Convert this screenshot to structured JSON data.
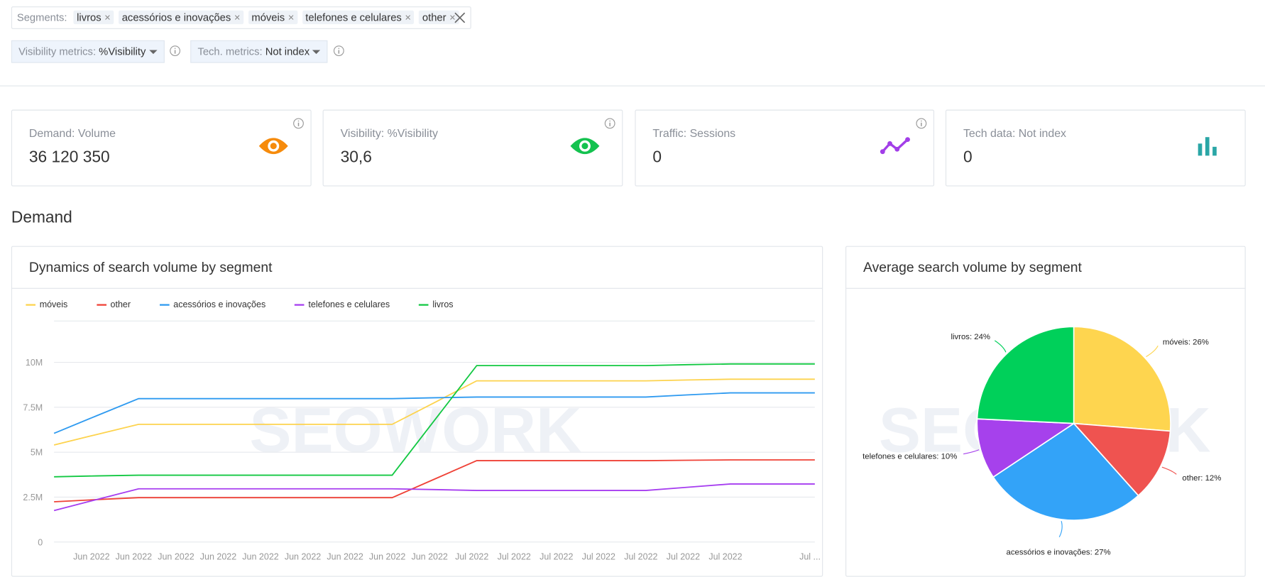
{
  "filters": {
    "segments_label": "Segments:",
    "segments": [
      "livros",
      "acessórios e inovações",
      "móveis",
      "telefones e celulares",
      "other"
    ],
    "visibility_label": "Visibility metrics:",
    "visibility_value": "%Visibility",
    "tech_label": "Tech. metrics:",
    "tech_value": "Not index"
  },
  "cards": [
    {
      "title": "Demand: Volume",
      "value": "36 120 350"
    },
    {
      "title": "Visibility: %Visibility",
      "value": "30,6"
    },
    {
      "title": "Traffic: Sessions",
      "value": "0"
    },
    {
      "title": "Tech data: Not index",
      "value": "0"
    }
  ],
  "section_title": "Demand",
  "chart_data": [
    {
      "type": "line",
      "title": "Dynamics of search volume by segment",
      "watermark": "SEOWORK",
      "categories": [
        null,
        "Jun 2022",
        "Jun 2022",
        "Jun 2022",
        "Jun 2022",
        "Jun 2022",
        "Jun 2022",
        "Jun 2022",
        "Jun 2022",
        "Jun 2022",
        "Jul 2022",
        "Jul 2022",
        "Jul 2022",
        "Jul 2022",
        "Jul 2022",
        "Jul 2022",
        "Jul 2022",
        null,
        "Jul ..."
      ],
      "ylim": [
        0,
        12300000
      ],
      "yticks": [
        0,
        {
          "value": 2500000,
          "label": "2.5M"
        },
        {
          "value": 5000000,
          "label": "5M"
        },
        {
          "value": 7500000,
          "label": "7.5M"
        },
        {
          "value": 10000000,
          "label": "10M"
        }
      ],
      "grid": true,
      "series": [
        {
          "name": "móveis",
          "color": "#fdd34e",
          "values": [
            5400000,
            5980000,
            6550000,
            6550000,
            6550000,
            6550000,
            6550000,
            6550000,
            6550000,
            7760000,
            8970000,
            8970000,
            8970000,
            8970000,
            8970000,
            9020000,
            9060000,
            9060000,
            9060000
          ]
        },
        {
          "name": "other",
          "color": "#ef4136",
          "values": [
            2240000,
            2360000,
            2470000,
            2470000,
            2470000,
            2470000,
            2470000,
            2470000,
            2470000,
            3500000,
            4530000,
            4530000,
            4530000,
            4530000,
            4530000,
            4550000,
            4570000,
            4570000,
            4570000
          ]
        },
        {
          "name": "acessórios e inovações",
          "color": "#2e9af0",
          "values": [
            6050000,
            7020000,
            7980000,
            7980000,
            7980000,
            7980000,
            7980000,
            7980000,
            7980000,
            8030000,
            8070000,
            8070000,
            8070000,
            8070000,
            8070000,
            8190000,
            8300000,
            8300000,
            8300000
          ]
        },
        {
          "name": "telefones e celulares",
          "color": "#a63df0",
          "values": [
            1750000,
            2360000,
            2960000,
            2960000,
            2960000,
            2960000,
            2960000,
            2960000,
            2960000,
            2920000,
            2870000,
            2870000,
            2870000,
            2870000,
            2870000,
            3050000,
            3230000,
            3230000,
            3230000
          ]
        },
        {
          "name": "livros",
          "color": "#12c842",
          "values": [
            3630000,
            3680000,
            3720000,
            3720000,
            3720000,
            3720000,
            3720000,
            3720000,
            3720000,
            6770000,
            9820000,
            9820000,
            9820000,
            9820000,
            9820000,
            9870000,
            9910000,
            9910000,
            9910000
          ]
        }
      ]
    },
    {
      "type": "pie",
      "title": "Average search volume by segment",
      "watermark": "SEOWORK",
      "categories": [
        "móveis",
        "other",
        "acessórios e inovações",
        "telefones e celulares",
        "livros"
      ],
      "values": [
        26,
        12,
        27,
        10,
        24
      ],
      "value_labels": [
        "móveis: 26%",
        "other: 12%",
        "acessórios e inovações: 27%",
        "telefones e celulares: 10%",
        "livros: 24%"
      ],
      "colors": [
        "#fed54f",
        "#ef5350",
        "#33a3f8",
        "#a641ec",
        "#00d05a"
      ]
    }
  ]
}
